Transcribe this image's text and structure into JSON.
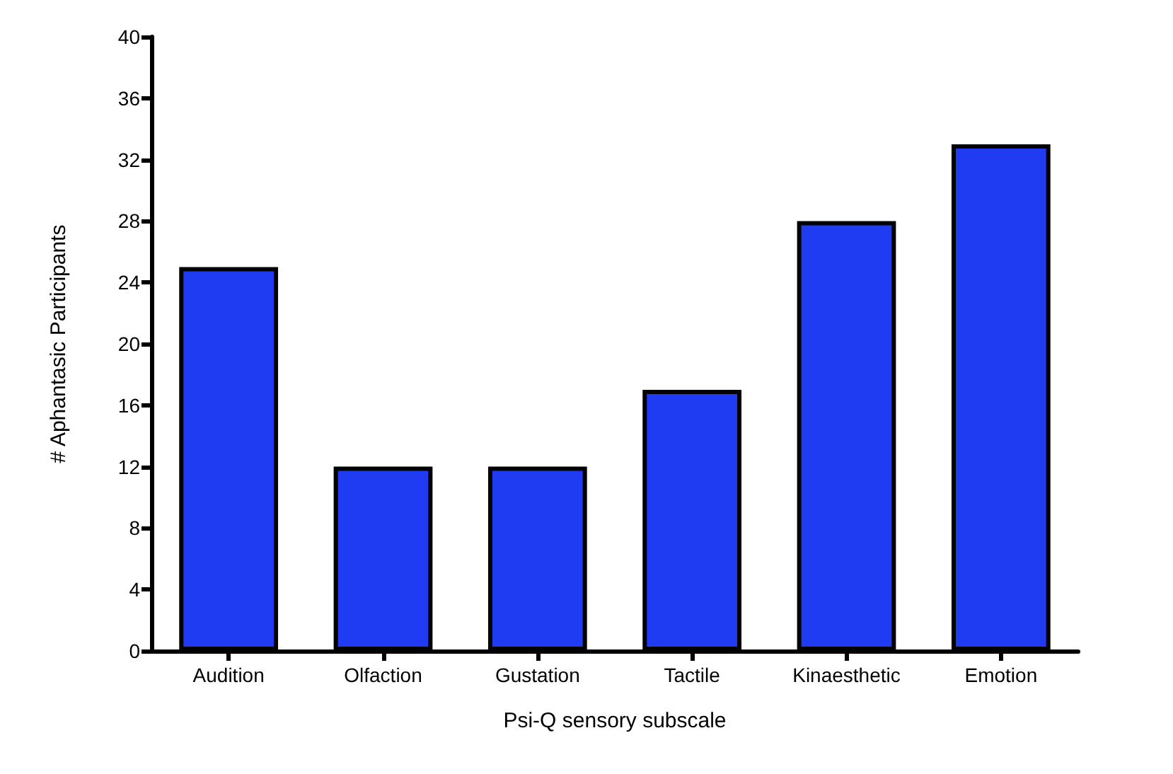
{
  "chart_data": {
    "type": "bar",
    "xlabel": "Psi-Q sensory subscale",
    "ylabel": "# Aphantasic Participants",
    "categories": [
      "Audition",
      "Olfaction",
      "Gustation",
      "Tactile",
      "Kinaesthetic",
      "Emotion"
    ],
    "values": [
      25,
      12,
      12,
      17,
      28,
      33
    ],
    "color": "#1f3cf2",
    "ylim": [
      0,
      40
    ],
    "yticks": [
      0,
      4,
      8,
      12,
      16,
      20,
      24,
      28,
      32,
      36,
      40
    ],
    "grid": false
  }
}
